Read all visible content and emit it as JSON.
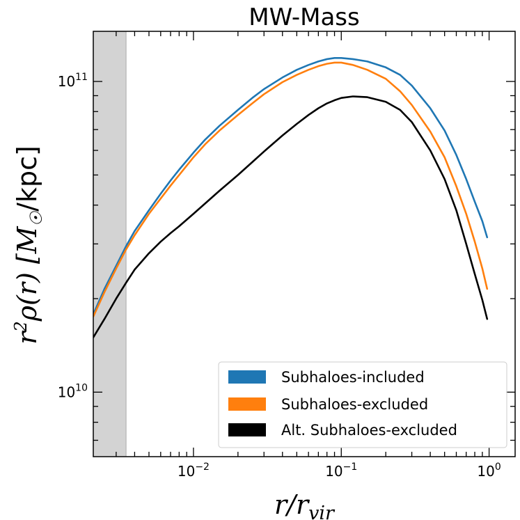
{
  "chart_data": {
    "type": "line",
    "title": "MW-Mass",
    "xlabel": "r/r_vir",
    "ylabel": "r²ρ(r) [M☉/kpc]",
    "xscale": "log",
    "yscale": "log",
    "xlim": [
      0.0021,
      1.5
    ],
    "ylim": [
      6200000000.0,
      145000000000.0
    ],
    "xticks": [
      {
        "value": 0.01,
        "label": "10",
        "exp": "−2"
      },
      {
        "value": 0.1,
        "label": "10",
        "exp": "−1"
      },
      {
        "value": 1.0,
        "label": "10",
        "exp": "0"
      }
    ],
    "yticks": [
      {
        "value": 10000000000.0,
        "label": "10",
        "exp": "10"
      },
      {
        "value": 100000000000.0,
        "label": "10",
        "exp": "11"
      }
    ],
    "shaded_region": {
      "x_from": 0.0021,
      "x_to": 0.0035,
      "color": "#d3d3d3"
    },
    "legend_position": "lower-right",
    "grid": false,
    "x": [
      0.0021,
      0.0025,
      0.003,
      0.0035,
      0.004,
      0.005,
      0.006,
      0.007,
      0.008,
      0.01,
      0.012,
      0.015,
      0.02,
      0.025,
      0.03,
      0.04,
      0.05,
      0.06,
      0.07,
      0.08,
      0.09,
      0.1,
      0.12,
      0.15,
      0.2,
      0.25,
      0.3,
      0.4,
      0.5,
      0.6,
      0.7,
      0.8,
      0.9,
      0.97
    ],
    "series": [
      {
        "name": "Subhaloes-included",
        "color": "#1f77b4",
        "values": [
          17800000000.0,
          21500000000.0,
          25500000000.0,
          29500000000.0,
          33000000000.0,
          38500000000.0,
          43500000000.0,
          48000000000.0,
          52000000000.0,
          59000000000.0,
          65000000000.0,
          72000000000.0,
          81000000000.0,
          88500000000.0,
          94500000000.0,
          103000000000.0,
          109000000000.0,
          113000000000.0,
          116000000000.0,
          118000000000.0,
          119000000000.0,
          119000000000.0,
          118000000000.0,
          116000000000.0,
          111000000000.0,
          105000000000.0,
          97000000000.0,
          82000000000.0,
          69500000000.0,
          58000000000.0,
          48500000000.0,
          41000000000.0,
          35500000000.0,
          31500000000.0
        ]
      },
      {
        "name": "Subhaloes-excluded",
        "color": "#ff7f0e",
        "values": [
          17500000000.0,
          21000000000.0,
          25000000000.0,
          28800000000.0,
          32000000000.0,
          37500000000.0,
          42000000000.0,
          46200000000.0,
          50000000000.0,
          57000000000.0,
          62800000000.0,
          69500000000.0,
          78000000000.0,
          85000000000.0,
          91000000000.0,
          99500000000.0,
          105000000000.0,
          109000000000.0,
          112000000000.0,
          114000000000.0,
          115000000000.0,
          115000000000.0,
          113000000000.0,
          109000000000.0,
          102000000000.0,
          93000000000.0,
          84000000000.0,
          69000000000.0,
          57000000000.0,
          46000000000.0,
          37500000000.0,
          30500000000.0,
          25000000000.0,
          21500000000.0
        ]
      },
      {
        "name": "Alt. Subhaloes-excluded",
        "color": "#000000",
        "values": [
          15000000000.0,
          17200000000.0,
          20000000000.0,
          22500000000.0,
          24800000000.0,
          28000000000.0,
          30500000000.0,
          32500000000.0,
          34200000000.0,
          37500000000.0,
          40500000000.0,
          44500000000.0,
          50000000000.0,
          55000000000.0,
          59500000000.0,
          67000000000.0,
          73000000000.0,
          78000000000.0,
          82000000000.0,
          85000000000.0,
          87000000000.0,
          88500000000.0,
          89500000000.0,
          89000000000.0,
          86000000000.0,
          81000000000.0,
          74000000000.0,
          60000000000.0,
          48500000000.0,
          38500000000.0,
          30000000000.0,
          24000000000.0,
          19800000000.0,
          17200000000.0
        ]
      }
    ]
  }
}
